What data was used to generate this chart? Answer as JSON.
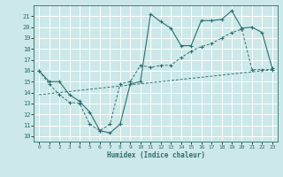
{
  "xlabel": "Humidex (Indice chaleur)",
  "bg_color": "#cce8e8",
  "grid_color": "#ffffff",
  "line_color": "#2e6e6e",
  "xlim": [
    -0.5,
    23.5
  ],
  "ylim": [
    9.5,
    22.0
  ],
  "yticks": [
    10,
    11,
    12,
    13,
    14,
    15,
    16,
    17,
    18,
    19,
    20,
    21
  ],
  "xticks": [
    0,
    1,
    2,
    3,
    4,
    5,
    6,
    7,
    8,
    9,
    10,
    11,
    12,
    13,
    14,
    15,
    16,
    17,
    18,
    19,
    20,
    21,
    22,
    23
  ],
  "upper_x": [
    0,
    1,
    2,
    3,
    4,
    5,
    6,
    7,
    8,
    9,
    10,
    11,
    12,
    13,
    14,
    15,
    16,
    17,
    18,
    19,
    20,
    21,
    22,
    23
  ],
  "upper_y": [
    16.0,
    15.0,
    15.0,
    13.8,
    13.2,
    12.2,
    10.5,
    10.3,
    11.1,
    14.8,
    15.0,
    21.2,
    20.5,
    19.9,
    18.3,
    18.3,
    20.6,
    20.6,
    20.7,
    21.5,
    19.9,
    20.0,
    19.5,
    16.2
  ],
  "lower_x": [
    0,
    1,
    2,
    3,
    4,
    5,
    6,
    7,
    8,
    9,
    10,
    11,
    12,
    13,
    14,
    15,
    16,
    17,
    18,
    19,
    20,
    21,
    22,
    23
  ],
  "lower_y": [
    16.0,
    14.8,
    13.8,
    13.1,
    13.0,
    11.1,
    10.5,
    11.1,
    14.8,
    15.0,
    16.5,
    16.3,
    16.5,
    16.5,
    17.2,
    17.8,
    18.2,
    18.5,
    19.0,
    19.5,
    19.8,
    16.1,
    16.1,
    16.1
  ],
  "trend_x": [
    0,
    23
  ],
  "trend_y": [
    13.8,
    16.1
  ]
}
